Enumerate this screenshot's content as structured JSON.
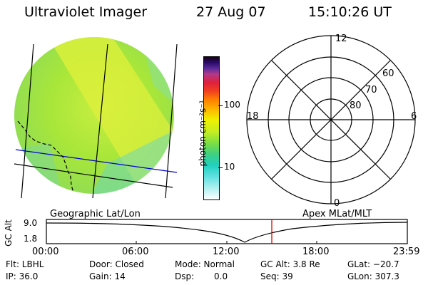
{
  "header": {
    "instrument": "Ultraviolet Imager",
    "date": "27 Aug 07",
    "time": "15:10:26 UT"
  },
  "colorbar": {
    "unit_label": "photon cm⁻²s⁻¹",
    "tick_100": "100",
    "tick_10": "10"
  },
  "polar_plot": {
    "label_top": "12",
    "label_left": "18",
    "label_right": "6",
    "label_bottom": "0",
    "lat_60": "60",
    "lat_70": "70",
    "lat_80": "80"
  },
  "strip": {
    "left_title": "Geographic Lat/Lon",
    "right_title": "Apex MLat/MLT",
    "ylabel": "GC Alt",
    "ytick_top": "9.0",
    "ytick_bottom": "1.8",
    "xticks": [
      "00:00",
      "06:00",
      "12:00",
      "18:00",
      "23:59"
    ]
  },
  "status": {
    "flt": "Flt: LBHL",
    "ip": "IP: 36.0",
    "door": "Door: Closed",
    "gain": "Gain: 14",
    "mode": "Mode: Normal",
    "dsp_label": "Dsp:",
    "dsp_value": "0.0",
    "gc_alt": "GC Alt: 3.8 Re",
    "seq": "Seq: 39",
    "glat": "GLat: −20.7",
    "glon": "GLon: 307.3"
  },
  "colors": {
    "accent_line": "#0000cc",
    "marker": "#dd0000"
  }
}
